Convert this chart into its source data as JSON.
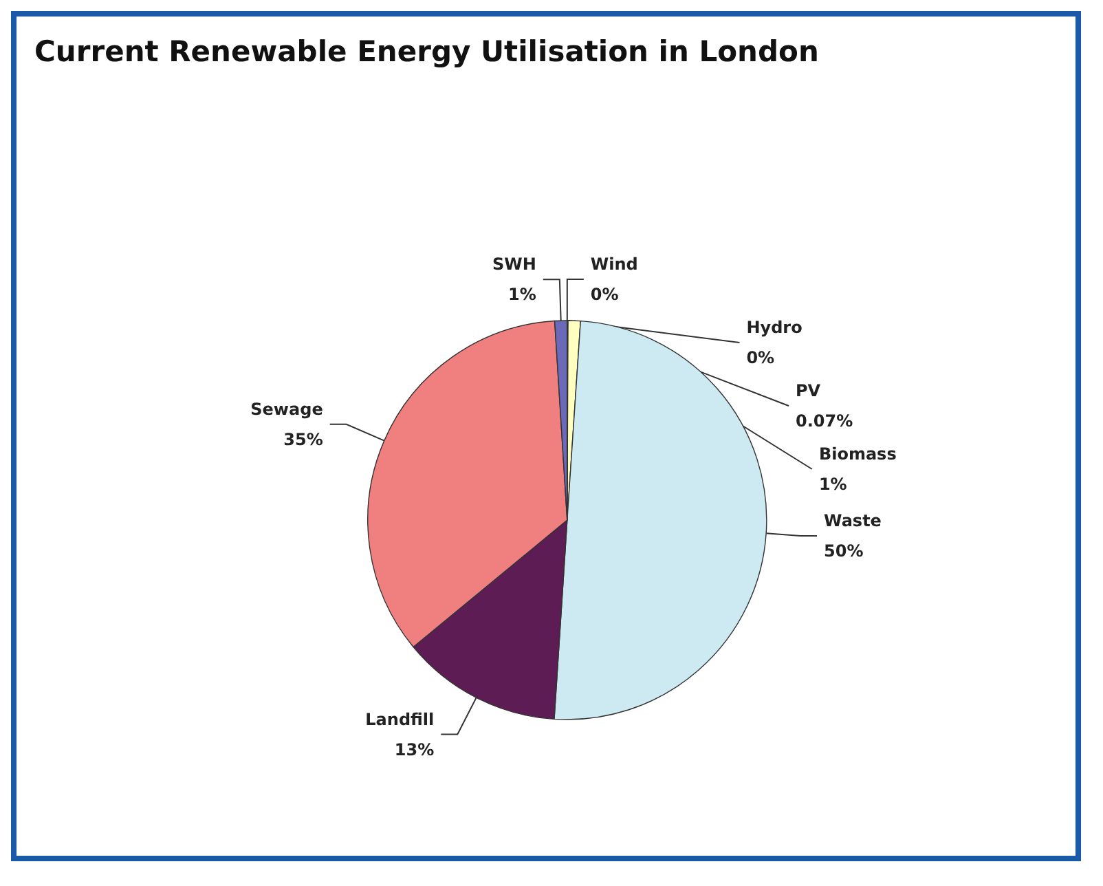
{
  "chart_data": {
    "type": "pie",
    "title": "Current Renewable Energy Utilisation in London",
    "categories": [
      "PV",
      "Biomass",
      "Waste",
      "Landfill",
      "Sewage",
      "SWH",
      "Wind",
      "Hydro"
    ],
    "values": [
      0.07,
      1,
      50,
      13,
      35,
      1,
      0,
      0
    ],
    "value_labels": [
      "0.07%",
      "1%",
      "50%",
      "13%",
      "35%",
      "1%",
      "0%",
      "0%"
    ],
    "colors": [
      "#7f7fb0",
      "#ffffc0",
      "#cde9f2",
      "#5e1c55",
      "#f08080",
      "#6a6ab8",
      "#404080",
      "#8080c0"
    ],
    "legend": false
  }
}
